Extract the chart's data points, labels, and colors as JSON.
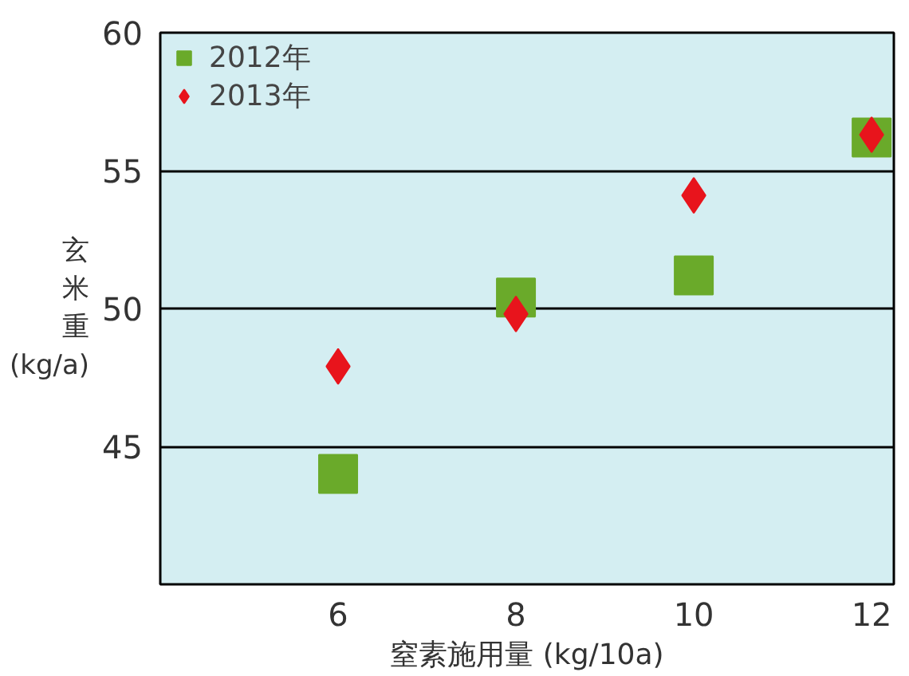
{
  "chart_data": {
    "type": "scatter",
    "xlabel": "窒素施用量 (kg/10a)",
    "ylabel": "玄米重 (kg/a)",
    "x": [
      6,
      8,
      10,
      12
    ],
    "series": [
      {
        "name": "2012年",
        "color": "#6aaa2a",
        "marker": "square",
        "values": [
          44.0,
          50.4,
          51.2,
          56.2
        ]
      },
      {
        "name": "2013年",
        "color": "#e8141c",
        "marker": "diamond",
        "values": [
          47.9,
          49.8,
          54.1,
          56.3
        ]
      }
    ],
    "xlim": [
      4,
      12.25
    ],
    "ylim": [
      40,
      60
    ],
    "xticks": [
      6,
      8,
      10,
      12
    ],
    "yticks": [
      45,
      50,
      55,
      60
    ],
    "grid": "y",
    "legend": "top left"
  }
}
